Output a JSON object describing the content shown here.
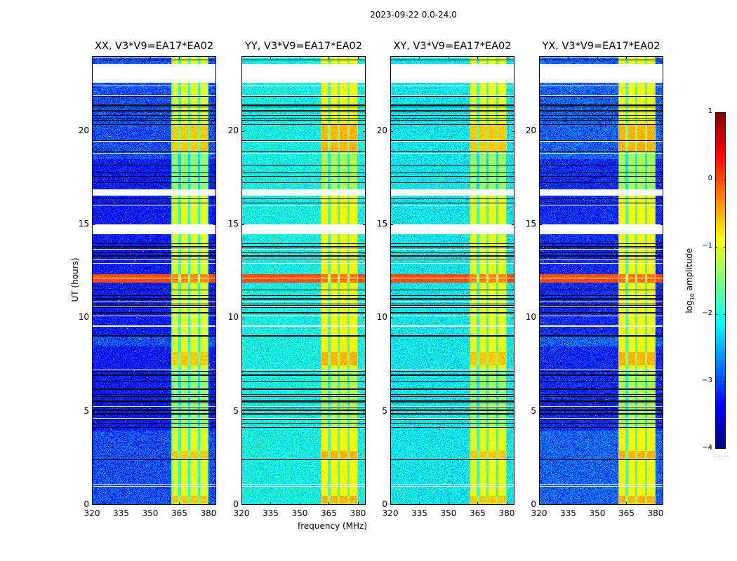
{
  "figure": {
    "suptitle": "2023-09-22 0.0-24.0",
    "ylabel": "UT (hours)",
    "xlabel": "frequency (MHz)",
    "colorbar_label_prefix": "log",
    "colorbar_label_sub": "10",
    "colorbar_label_suffix": " amplitude",
    "colorbar_dots": "......"
  },
  "chart_data": {
    "type": "heatmap",
    "title": "2023-09-22 0.0-24.0",
    "xlabel": "frequency (MHz)",
    "ylabel": "UT (hours)",
    "xlim": [
      320,
      384
    ],
    "ylim": [
      0,
      24
    ],
    "xticks": [
      320,
      335,
      350,
      365,
      380
    ],
    "yticks": [
      0,
      5,
      10,
      15,
      20
    ],
    "colormap": "jet",
    "colorbar": {
      "label": "log10 amplitude",
      "range": [
        -4,
        1
      ],
      "ticks": [
        1,
        0,
        -1,
        -2,
        -3,
        -4
      ],
      "tick_labels": [
        "1",
        "0",
        "−1",
        "−2",
        "−3",
        "−4"
      ]
    },
    "band": {
      "strong_start_mhz": 360.5,
      "strong_end_mhz": 380,
      "subband_edges_mhz": [
        360.5,
        365,
        370,
        375,
        380
      ]
    },
    "white_gaps_hours": [
      [
        22.6,
        23.6
      ],
      [
        16.6,
        16.9
      ],
      [
        14.5,
        15.0
      ],
      [
        18.8,
        18.85
      ]
    ],
    "high_amplitude_hours": [
      [
        18.9,
        20.4
      ],
      [
        0.1,
        0.5
      ],
      [
        2.5,
        2.9
      ],
      [
        7.5,
        8.2
      ],
      [
        12.1,
        12.3
      ]
    ],
    "panels": [
      {
        "name": "XX",
        "title": "XX, V3*V9=EA17*EA02",
        "background_log10": -3.0,
        "band_log10": -1.0
      },
      {
        "name": "YY",
        "title": "YY, V3*V9=EA17*EA02",
        "background_log10": -2.1,
        "band_log10": -0.9
      },
      {
        "name": "XY",
        "title": "XY, V3*V9=EA17*EA02",
        "background_log10": -2.2,
        "band_log10": -1.0
      },
      {
        "name": "YX",
        "title": "YX, V3*V9=EA17*EA02",
        "background_log10": -2.9,
        "band_log10": -0.9
      }
    ]
  }
}
